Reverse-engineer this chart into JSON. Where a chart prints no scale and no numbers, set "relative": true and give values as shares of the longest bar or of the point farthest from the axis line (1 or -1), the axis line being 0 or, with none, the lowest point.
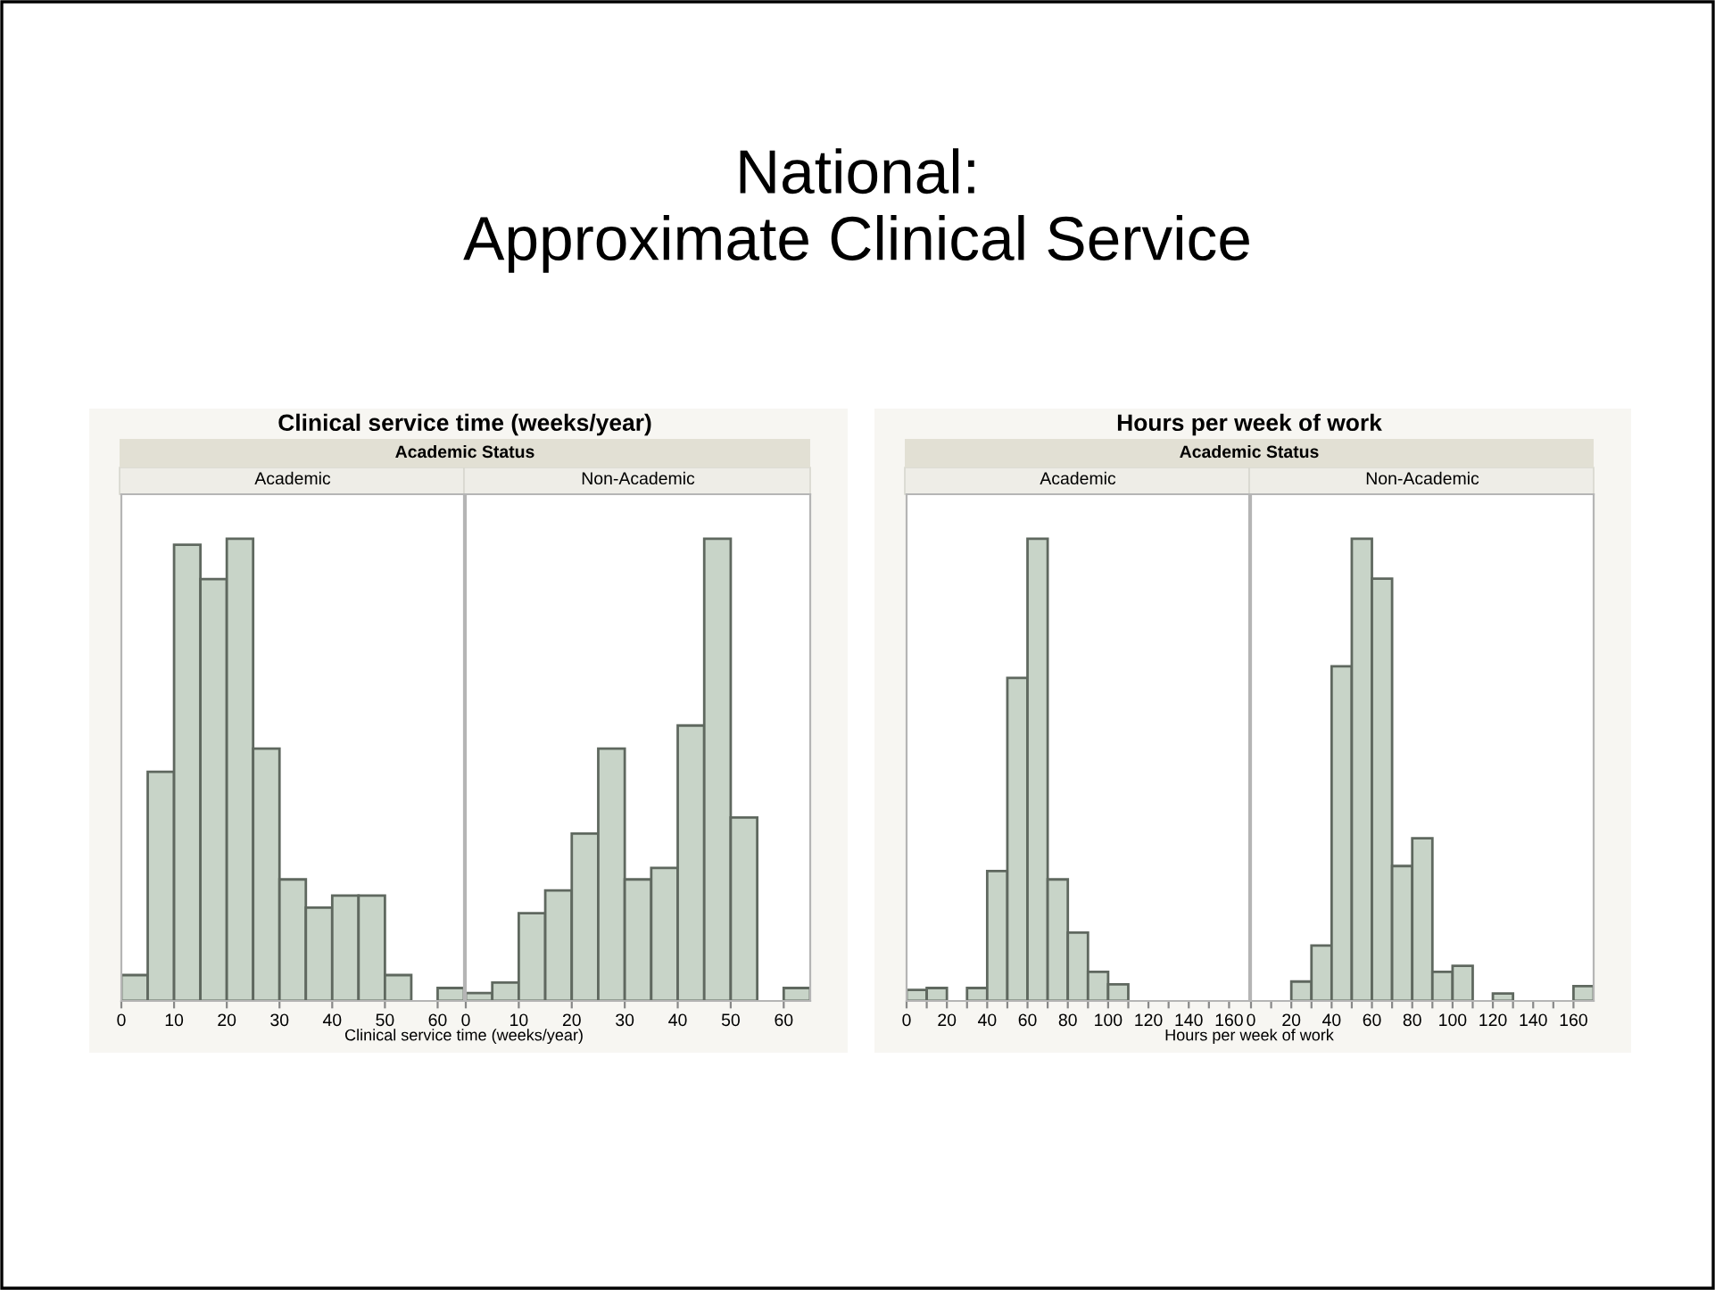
{
  "chart_data": [
    {
      "type": "bar",
      "title": "Academic",
      "annotations": [
        "National:\nApproximate Clinical Service",
        "Clinical service time (weeks/year)",
        "Academic Status"
      ],
      "xlabel": "Clinical service time (weeks/year)",
      "relative": true,
      "color": "#c8d4c8",
      "x": [
        2.5,
        7.5,
        12.5,
        17.5,
        22.5,
        27.5,
        32.5,
        37.5,
        42.5,
        47.5,
        52.5,
        57.5,
        62.5
      ],
      "values": [
        0.056,
        0.496,
        0.987,
        0.913,
        1.0,
        0.546,
        0.263,
        0.202,
        0.228,
        0.228,
        0.056,
        0,
        0.028
      ],
      "xlim": [
        0,
        65
      ],
      "xticks": [
        0,
        10,
        20,
        30,
        40,
        50,
        60
      ],
      "grid": false
    },
    {
      "type": "bar",
      "title": "Non-Academic",
      "relative": true,
      "color": "#c8d4c8",
      "x": [
        2.5,
        7.5,
        12.5,
        17.5,
        22.5,
        27.5,
        32.5,
        37.5,
        42.5,
        47.5,
        52.5,
        57.5,
        62.5
      ],
      "values": [
        0.017,
        0.04,
        0.19,
        0.239,
        0.362,
        0.546,
        0.263,
        0.288,
        0.596,
        1.0,
        0.397,
        0,
        0.028
      ],
      "xlim": [
        0,
        65
      ],
      "xticks": [
        0,
        10,
        20,
        30,
        40,
        50,
        60
      ],
      "grid": false
    },
    {
      "type": "bar",
      "title": "Academic",
      "annotations": [
        "Hours per week of work",
        "Academic Status"
      ],
      "xlabel": "Hours per week of work",
      "relative": true,
      "color": "#c8d4c8",
      "x": [
        5,
        15,
        25,
        35,
        45,
        55,
        65,
        75,
        85,
        95,
        105,
        115,
        125,
        135,
        145,
        155,
        165
      ],
      "values": [
        0.024,
        0.028,
        0,
        0.028,
        0.281,
        0.699,
        1.0,
        0.263,
        0.148,
        0.063,
        0.036,
        0,
        0,
        0,
        0,
        0,
        0
      ],
      "xlim": [
        0,
        170
      ],
      "xticks": [
        0,
        {
          "value": 10,
          "label": null
        },
        20,
        {
          "value": 30,
          "label": null
        },
        40,
        {
          "value": 50,
          "label": null
        },
        60,
        {
          "value": 70,
          "label": null
        },
        80,
        {
          "value": 90,
          "label": null
        },
        100,
        {
          "value": 110,
          "label": null
        },
        120,
        {
          "value": 130,
          "label": null
        },
        140,
        {
          "value": 150,
          "label": null
        },
        160
      ],
      "grid": false
    },
    {
      "type": "bar",
      "title": "Non-Academic",
      "relative": true,
      "color": "#c8d4c8",
      "x": [
        5,
        15,
        25,
        35,
        45,
        55,
        65,
        75,
        85,
        95,
        105,
        115,
        125,
        135,
        145,
        155,
        165
      ],
      "values": [
        0,
        0,
        0.042,
        0.12,
        0.724,
        1.0,
        0.914,
        0.292,
        0.352,
        0.063,
        0.076,
        0,
        0.016,
        0,
        0,
        0,
        0.032
      ],
      "xlim": [
        0,
        170
      ],
      "xticks": [
        0,
        {
          "value": 10,
          "label": null
        },
        20,
        {
          "value": 30,
          "label": null
        },
        40,
        {
          "value": 50,
          "label": null
        },
        60,
        {
          "value": 70,
          "label": null
        },
        80,
        {
          "value": 90,
          "label": null
        },
        100,
        {
          "value": 110,
          "label": null
        },
        120,
        {
          "value": 130,
          "label": null
        },
        140,
        {
          "value": 150,
          "label": null
        },
        160
      ],
      "grid": false
    }
  ]
}
